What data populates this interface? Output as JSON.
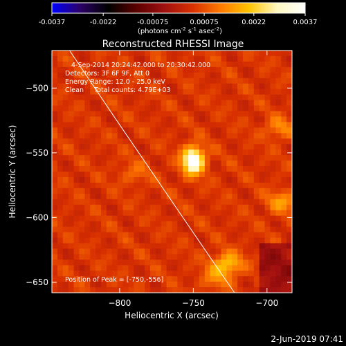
{
  "colors": {
    "background": "#000000",
    "text": "#ffffff",
    "limb": "#ffffff",
    "colormap": [
      "#0000ff",
      "#2b0066",
      "#000000",
      "#5a0000",
      "#a01010",
      "#d83000",
      "#ff7a00",
      "#ffc400",
      "#fff8c0",
      "#ffffff"
    ]
  },
  "colorbar": {
    "ticks": [
      "-0.0037",
      "-0.0022",
      "-0.00075",
      "0.00075",
      "0.0022",
      "0.0037"
    ],
    "range": [
      -0.0037,
      0.0037
    ],
    "label_main": "(photons cm",
    "label_sup1": "-2",
    "label_mid1": " s",
    "label_sup2": "-1",
    "label_mid2": " asec",
    "label_sup3": "-2",
    "label_end": ")"
  },
  "chart_data": {
    "type": "heatmap",
    "title": "Reconstructed RHESSI Image",
    "xlabel": "Heliocentric X (arcsec)",
    "ylabel": "Heliocentric Y (arcsec)",
    "xlim": [
      -846,
      -683
    ],
    "ylim": [
      -658,
      -471
    ],
    "xticks": [
      -800,
      -750,
      -700
    ],
    "yticks": [
      -500,
      -550,
      -600,
      -650
    ],
    "annotations": [
      "4-Sep-2014 20:24:42.000 to 20:30:42.000",
      "Detectors: 3F 6F 9F, Att 0",
      "Energy Range: 12.0 - 25.0 keV",
      "Clean     Total counts: 4.79E+03",
      "Position of Peak = [-750,-556]"
    ],
    "peak": {
      "x": -750,
      "y": -556,
      "value": 0.0037
    },
    "secondary_sources": [
      {
        "x": -727,
        "y": -636,
        "value": 0.0017
      },
      {
        "x": -690,
        "y": -588,
        "value": 0.0011
      },
      {
        "x": -692,
        "y": -531,
        "value": 0.0009
      },
      {
        "x": -735,
        "y": -647,
        "value": 0.0008
      },
      {
        "x": -790,
        "y": -566,
        "value": 0.0006
      }
    ],
    "limb_curve": [
      [
        -834,
        -471
      ],
      [
        -802,
        -525
      ],
      [
        -769,
        -580
      ],
      [
        -736,
        -635
      ],
      [
        -722,
        -658
      ]
    ],
    "footer": "2-Jun-2019 07:41"
  }
}
